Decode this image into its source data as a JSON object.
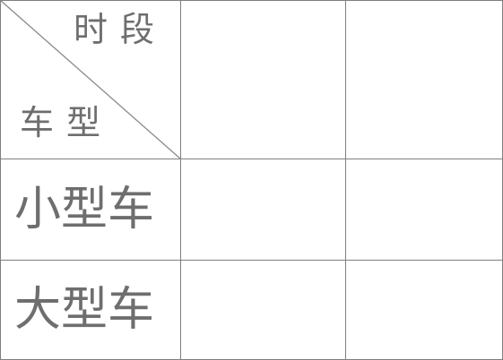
{
  "table": {
    "header_corner": {
      "top_right_label": "时段",
      "bottom_left_label": "车型"
    },
    "columns": [
      "",
      ""
    ],
    "rows": [
      {
        "label": "小型车",
        "cells": [
          "",
          ""
        ]
      },
      {
        "label": "大型车",
        "cells": [
          "",
          ""
        ]
      }
    ]
  },
  "colors": {
    "border": "#7f7f7f",
    "text": "#6e6e6e",
    "background": "#ffffff"
  }
}
